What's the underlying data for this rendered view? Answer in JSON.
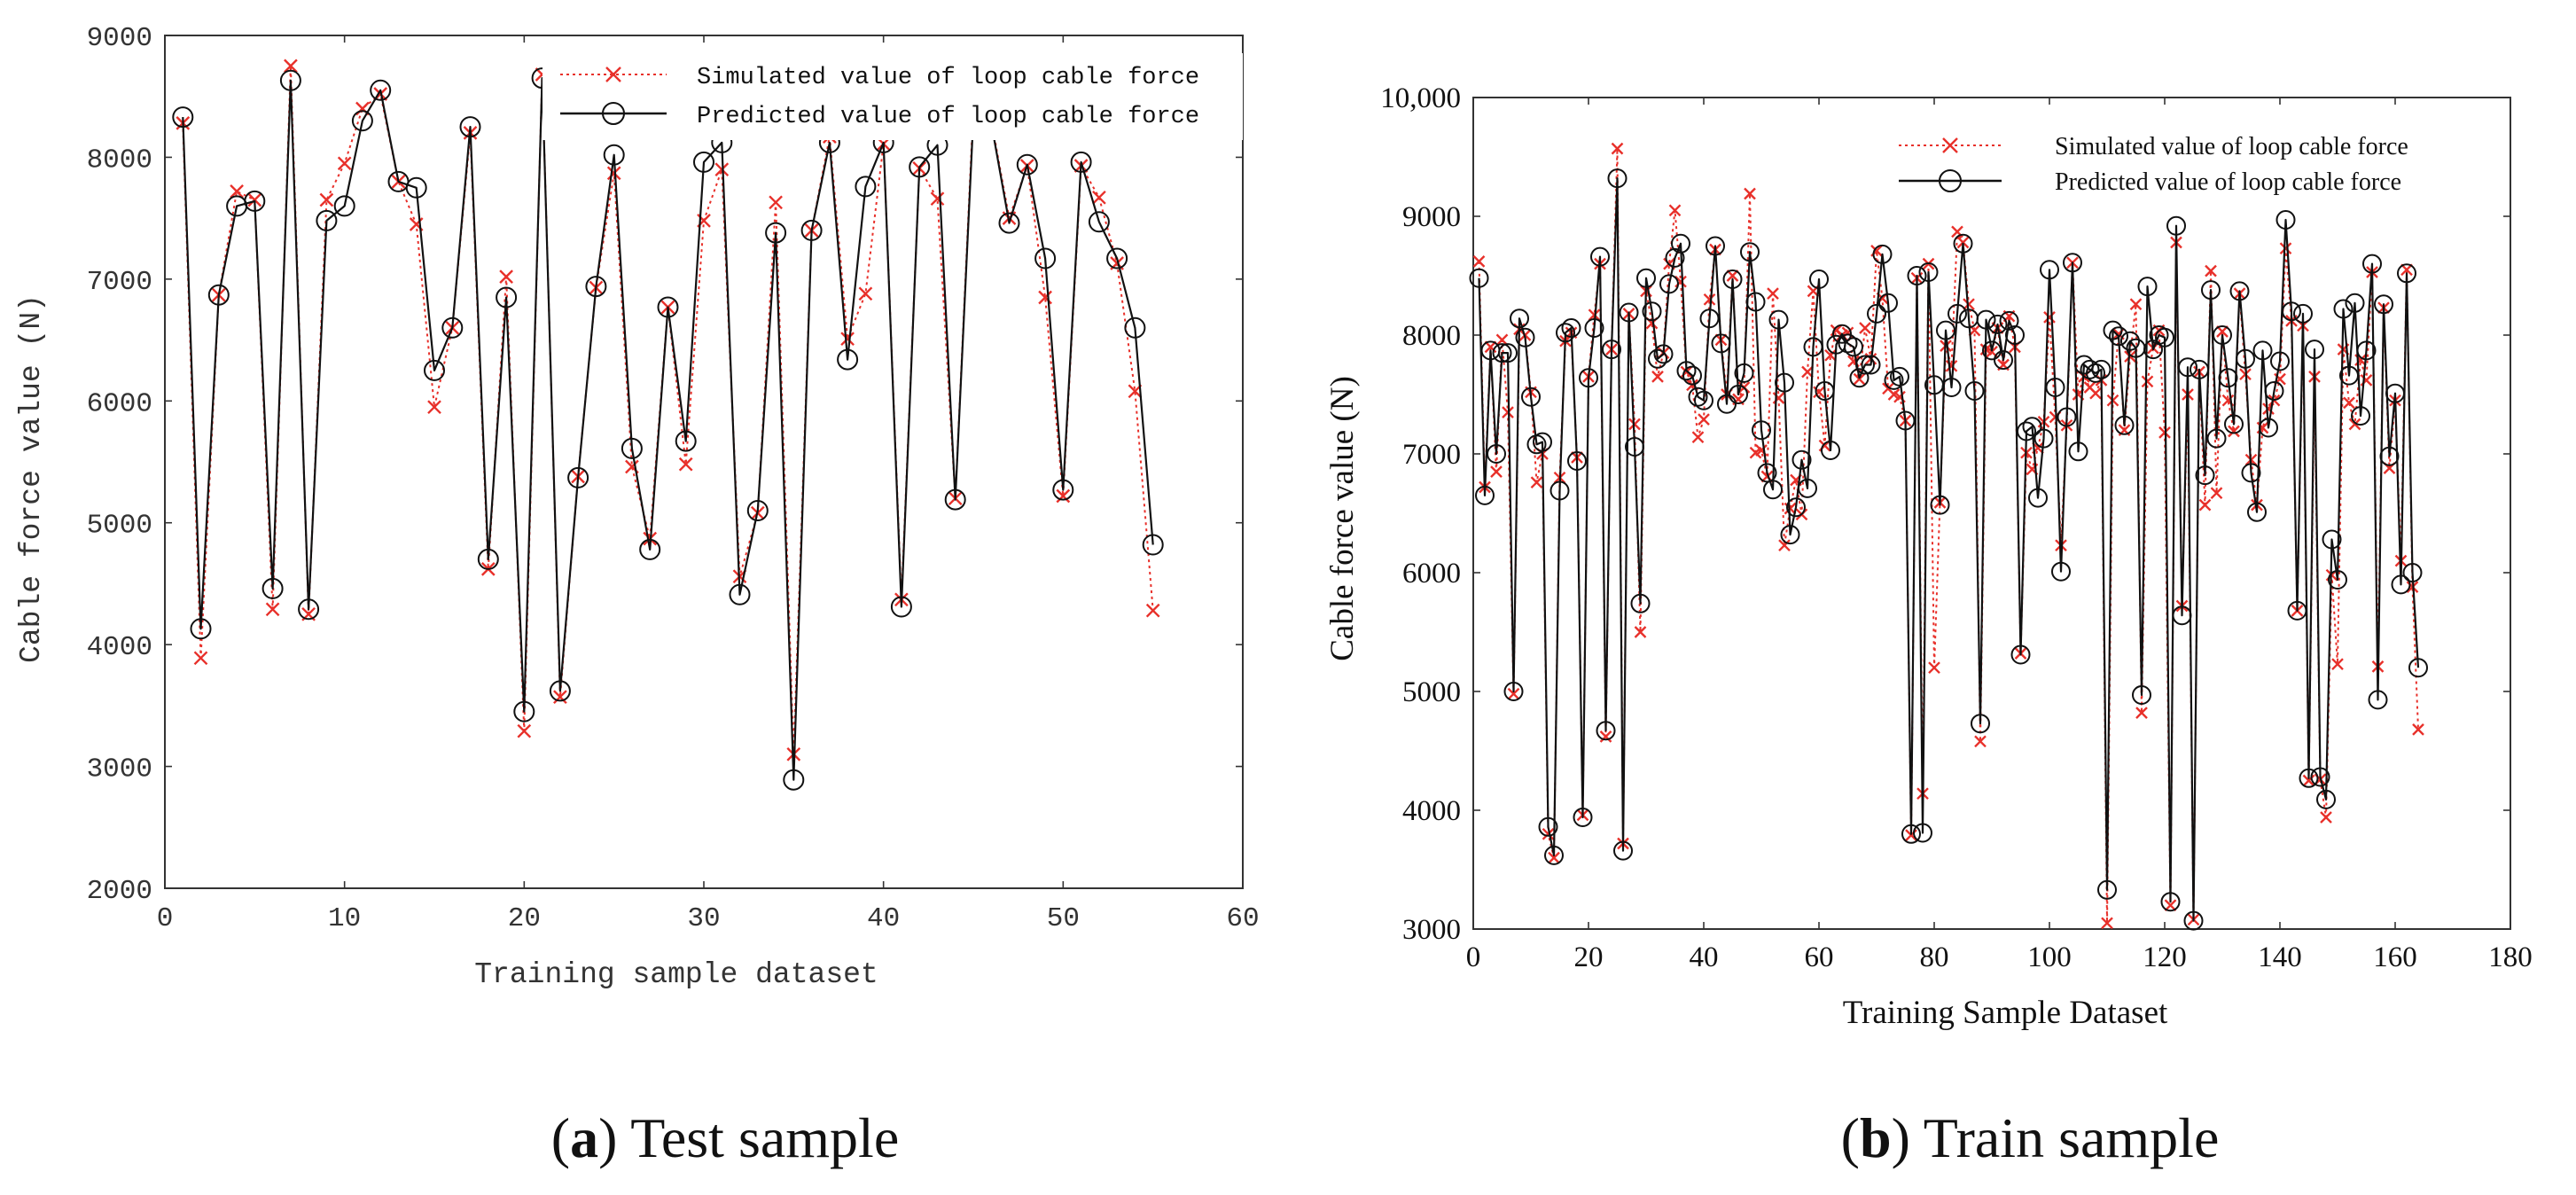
{
  "chart_data": [
    {
      "type": "line",
      "caption": {
        "letter": "a",
        "text": "Test sample"
      },
      "xlabel": "Training sample dataset",
      "ylabel": "Cable force value (N)",
      "xlim": [
        0,
        60
      ],
      "ylim": [
        2000,
        9000
      ],
      "xticks": [
        0,
        10,
        20,
        30,
        40,
        50,
        60
      ],
      "yticks": [
        2000,
        3000,
        4000,
        5000,
        6000,
        7000,
        8000,
        9000
      ],
      "legend_position": "top-right",
      "grid": false,
      "x": [
        1,
        2,
        3,
        4,
        5,
        6,
        7,
        8,
        9,
        10,
        11,
        12,
        13,
        14,
        15,
        16,
        17,
        18,
        19,
        20,
        21,
        22,
        23,
        24,
        25,
        26,
        27,
        28,
        29,
        30,
        31,
        32,
        33,
        34,
        35,
        36,
        37,
        38,
        39,
        40,
        41,
        42,
        43,
        44,
        45,
        46,
        47,
        48,
        49,
        50,
        51,
        52,
        53,
        54,
        55
      ],
      "series": [
        {
          "name": "Simulated value of loop cable force",
          "marker": "x",
          "line": "dotted",
          "color": "#e8302a",
          "values": [
            8280,
            3890,
            6870,
            7720,
            7650,
            4290,
            8750,
            4250,
            7650,
            7950,
            8400,
            8520,
            7800,
            7450,
            5950,
            6600,
            8200,
            4620,
            7020,
            3290,
            8680,
            3570,
            5380,
            6930,
            7870,
            5460,
            4870,
            6770,
            5480,
            7480,
            7900,
            4560,
            5080,
            7630,
            3100,
            7400,
            8170,
            6510,
            6880,
            8110,
            4370,
            7910,
            7660,
            5200,
            8400,
            8300,
            7500,
            7930,
            6850,
            5220,
            7930,
            7670,
            7130,
            6080,
            4280
          ]
        },
        {
          "name": "Predicted value of loop cable force",
          "marker": "o",
          "line": "solid",
          "color": "#111111",
          "values": [
            8330,
            4130,
            6870,
            7600,
            7640,
            4460,
            8630,
            4290,
            7480,
            7600,
            8300,
            8550,
            7800,
            7750,
            6250,
            6600,
            8250,
            4700,
            6850,
            3450,
            8650,
            3620,
            5370,
            6940,
            8020,
            5610,
            4780,
            6770,
            5670,
            7960,
            8120,
            4410,
            5100,
            7380,
            2890,
            7400,
            8120,
            6340,
            7760,
            8120,
            4310,
            7920,
            8100,
            5190,
            8320,
            8280,
            7460,
            7940,
            7170,
            5270,
            7960,
            7470,
            7170,
            6600,
            4820
          ]
        }
      ]
    },
    {
      "type": "line",
      "caption": {
        "letter": "b",
        "text": "Train sample"
      },
      "xlabel": "Training Sample Dataset",
      "ylabel": "Cable force value (N)",
      "xlim": [
        0,
        180
      ],
      "ylim": [
        3000,
        10000
      ],
      "xticks": [
        0,
        20,
        40,
        60,
        80,
        100,
        120,
        140,
        160,
        180
      ],
      "ytick_values": [
        3000,
        4000,
        5000,
        6000,
        7000,
        8000,
        9000,
        10000
      ],
      "ytick_labels": [
        "3000",
        "4000",
        "5000",
        "6000",
        "7000",
        "8000",
        "9000",
        "10,000"
      ],
      "legend_position": "top-right",
      "grid": false,
      "x": [
        1,
        2,
        3,
        4,
        5,
        6,
        7,
        8,
        9,
        10,
        11,
        12,
        13,
        14,
        15,
        16,
        17,
        18,
        19,
        20,
        21,
        22,
        23,
        24,
        25,
        26,
        27,
        28,
        29,
        30,
        31,
        32,
        33,
        34,
        35,
        36,
        37,
        38,
        39,
        40,
        41,
        42,
        43,
        44,
        45,
        46,
        47,
        48,
        49,
        50,
        51,
        52,
        53,
        54,
        55,
        56,
        57,
        58,
        59,
        60,
        61,
        62,
        63,
        64,
        65,
        66,
        67,
        68,
        69,
        70,
        71,
        72,
        73,
        74,
        75,
        76,
        77,
        78,
        79,
        80,
        81,
        82,
        83,
        84,
        85,
        86,
        87,
        88,
        89,
        90,
        91,
        92,
        93,
        94,
        95,
        96,
        97,
        98,
        99,
        100,
        101,
        102,
        103,
        104,
        105,
        106,
        107,
        108,
        109,
        110,
        111,
        112,
        113,
        114,
        115,
        116,
        117,
        118,
        119,
        120,
        121,
        122,
        123,
        124,
        125,
        126,
        127,
        128,
        129,
        130,
        131,
        132,
        133,
        134,
        135,
        136,
        137,
        138,
        139,
        140,
        141,
        142,
        143,
        144,
        145,
        146,
        147,
        148,
        149,
        150,
        151,
        152,
        153,
        154,
        155,
        156,
        157,
        158,
        159,
        160,
        161,
        162,
        163,
        164
      ],
      "series": [
        {
          "name": "Simulated value of loop cable force",
          "marker": "x",
          "line": "dotted",
          "color": "#e8302a",
          "values": [
            8620,
            6720,
            7900,
            6850,
            7960,
            7350,
            4980,
            8050,
            8000,
            7520,
            6760,
            7000,
            3800,
            3600,
            6800,
            7950,
            8020,
            6970,
            3960,
            7650,
            8170,
            8600,
            4620,
            7880,
            9570,
            3720,
            8180,
            7250,
            5500,
            8370,
            8100,
            7650,
            7850,
            8600,
            9050,
            8450,
            7690,
            7580,
            7140,
            7290,
            8300,
            8720,
            7960,
            7500,
            8500,
            7460,
            7560,
            9190,
            7010,
            7030,
            6810,
            8350,
            7470,
            6230,
            6540,
            6780,
            6490,
            7690,
            8370,
            7520,
            7070,
            7830,
            8040,
            8000,
            8020,
            7780,
            7630,
            8060,
            7800,
            8710,
            8310,
            7550,
            7500,
            7480,
            7280,
            3790,
            8480,
            4140,
            8600,
            5200,
            6590,
            7910,
            7740,
            8870,
            8780,
            8260,
            8040,
            4580,
            7880,
            7860,
            8060,
            7750,
            8160,
            7900,
            5320,
            7010,
            6870,
            7050,
            7270,
            8150,
            7310,
            6230,
            7240,
            8610,
            7500,
            7650,
            7560,
            7510,
            7620,
            3050,
            7450,
            8010,
            7200,
            7820,
            8260,
            4820,
            7610,
            7890,
            8040,
            7180,
            3200,
            8780,
            5720,
            7500,
            3080,
            7690,
            6570,
            8540,
            6670,
            8030,
            7450,
            7190,
            8350,
            7670,
            6950,
            6570,
            7220,
            7380,
            7450,
            7630,
            8730,
            8120,
            5680,
            8080,
            4250,
            7650,
            4260,
            3940,
            5980,
            5230,
            7880,
            7430,
            7250,
            7790,
            7620,
            8530,
            5210,
            8230,
            6880,
            7450,
            6100,
            8550,
            5880,
            4680
          ]
        },
        {
          "name": "Predicted value of loop cable force",
          "marker": "o",
          "line": "solid",
          "color": "#111111",
          "values": [
            8480,
            6650,
            7870,
            7000,
            7850,
            7850,
            5000,
            8140,
            7980,
            7480,
            7080,
            7100,
            3860,
            3620,
            6690,
            8020,
            8060,
            6940,
            3940,
            7640,
            8060,
            8660,
            4670,
            7880,
            9320,
            3660,
            8190,
            7060,
            5740,
            8480,
            8200,
            7800,
            7840,
            8430,
            8650,
            8770,
            7700,
            7660,
            7480,
            7450,
            8140,
            8750,
            7930,
            7420,
            8470,
            7500,
            7680,
            8700,
            8280,
            7200,
            6840,
            6700,
            8130,
            7600,
            6320,
            6550,
            6950,
            6710,
            7900,
            8470,
            7530,
            7030,
            7920,
            8010,
            7930,
            7900,
            7640,
            7750,
            7750,
            8180,
            8680,
            8270,
            7620,
            7650,
            7280,
            3800,
            8500,
            3810,
            8530,
            7580,
            6570,
            8040,
            7560,
            8180,
            8770,
            8140,
            7530,
            4730,
            8130,
            7870,
            8090,
            7790,
            8120,
            8000,
            5310,
            7190,
            7230,
            6630,
            7130,
            8550,
            7560,
            6010,
            7310,
            8610,
            7020,
            7750,
            7710,
            7680,
            7710,
            3330,
            8040,
            7990,
            7240,
            7950,
            7890,
            4970,
            8410,
            7880,
            8000,
            7980,
            3230,
            8920,
            5640,
            7730,
            3070,
            7710,
            6820,
            8380,
            7130,
            8000,
            7640,
            7250,
            8370,
            7800,
            6840,
            6510,
            7870,
            7220,
            7530,
            7780,
            8970,
            8200,
            5680,
            8180,
            4270,
            7880,
            4280,
            4090,
            6280,
            5940,
            8220,
            7660,
            8270,
            7320,
            7870,
            8600,
            4930,
            8260,
            6980,
            7510,
            5900,
            8520,
            6000,
            5200
          ]
        }
      ]
    }
  ]
}
